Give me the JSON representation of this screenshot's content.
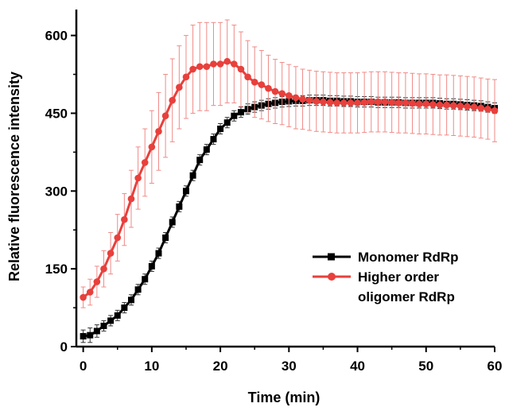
{
  "chart_data": {
    "type": "line",
    "xlabel": "Time (min)",
    "ylabel": "Relative fluorescence intensity",
    "xlim": [
      -1,
      60
    ],
    "ylim": [
      0,
      650
    ],
    "xticks": [
      0,
      10,
      20,
      30,
      40,
      50,
      60
    ],
    "yticks": [
      0,
      150,
      300,
      450,
      600
    ],
    "legend_position": "bottom-right",
    "x": [
      0,
      1,
      2,
      3,
      4,
      5,
      6,
      7,
      8,
      9,
      10,
      11,
      12,
      13,
      14,
      15,
      16,
      17,
      18,
      19,
      20,
      21,
      22,
      23,
      24,
      25,
      26,
      27,
      28,
      29,
      30,
      31,
      32,
      33,
      34,
      35,
      36,
      37,
      38,
      39,
      40,
      41,
      42,
      43,
      44,
      45,
      46,
      47,
      48,
      49,
      50,
      51,
      52,
      53,
      54,
      55,
      56,
      57,
      58,
      59,
      60
    ],
    "series": [
      {
        "name": "Monomer RdRp",
        "color": "#000000",
        "marker": "square",
        "values": [
          20,
          22,
          30,
          40,
          50,
          60,
          75,
          90,
          110,
          130,
          155,
          180,
          210,
          240,
          270,
          300,
          330,
          360,
          380,
          400,
          420,
          432,
          445,
          452,
          458,
          462,
          465,
          468,
          470,
          472,
          473,
          474,
          474,
          475,
          475,
          475,
          474,
          474,
          473,
          473,
          472,
          472,
          472,
          471,
          471,
          471,
          471,
          470,
          470,
          470,
          470,
          470,
          469,
          468,
          468,
          467,
          466,
          465,
          464,
          462,
          460
        ],
        "errors": [
          12,
          14,
          12,
          10,
          10,
          10,
          10,
          10,
          10,
          10,
          10,
          10,
          10,
          10,
          10,
          10,
          10,
          10,
          10,
          10,
          10,
          10,
          10,
          10,
          10,
          10,
          10,
          10,
          10,
          10,
          10,
          10,
          10,
          10,
          10,
          10,
          10,
          10,
          10,
          10,
          10,
          10,
          10,
          10,
          10,
          10,
          10,
          10,
          10,
          10,
          10,
          10,
          10,
          10,
          10,
          10,
          10,
          10,
          10,
          10,
          10
        ]
      },
      {
        "name": "Higher order oligomer RdRp",
        "color": "#e8403c",
        "marker": "circle",
        "values": [
          95,
          105,
          125,
          150,
          180,
          210,
          245,
          285,
          325,
          355,
          385,
          415,
          445,
          475,
          500,
          520,
          535,
          540,
          540,
          545,
          545,
          550,
          545,
          535,
          520,
          510,
          505,
          498,
          492,
          488,
          484,
          480,
          477,
          475,
          473,
          472,
          471,
          470,
          470,
          470,
          470,
          471,
          472,
          472,
          472,
          471,
          470,
          470,
          469,
          468,
          468,
          467,
          466,
          466,
          465,
          464,
          463,
          462,
          460,
          458,
          455
        ],
        "errors": [
          20,
          25,
          30,
          35,
          40,
          45,
          50,
          55,
          60,
          65,
          70,
          75,
          80,
          80,
          80,
          80,
          85,
          85,
          85,
          80,
          80,
          80,
          75,
          72,
          70,
          68,
          66,
          64,
          62,
          60,
          60,
          60,
          58,
          58,
          58,
          58,
          58,
          58,
          58,
          58,
          58,
          58,
          58,
          58,
          58,
          58,
          58,
          58,
          58,
          58,
          58,
          58,
          58,
          58,
          58,
          58,
          58,
          58,
          58,
          58,
          60
        ]
      }
    ]
  }
}
